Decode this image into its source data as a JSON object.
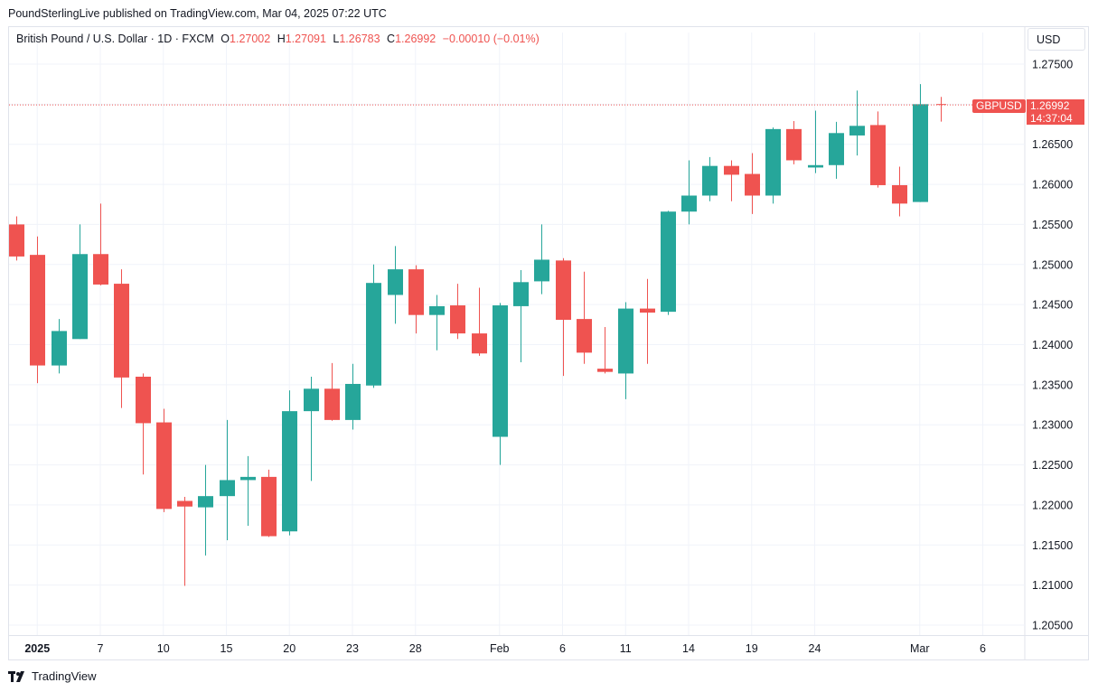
{
  "header": {
    "published": "PoundSterlingLive published on TradingView.com, Mar 04, 2025 07:22 UTC"
  },
  "legend": {
    "symbol": "British Pound / U.S. Dollar · 1D · FXCM",
    "o_label": "O",
    "o_value": "1.27002",
    "h_label": "H",
    "h_value": "1.27091",
    "l_label": "L",
    "l_value": "1.26783",
    "c_label": "C",
    "c_value": "1.26992",
    "change": "−0.00010 (−0.01%)"
  },
  "currency_label": "USD",
  "price_tag": {
    "symbol": "GBPUSD",
    "price": "1.26992",
    "countdown": "14:37:04"
  },
  "brand": {
    "name": "TradingView"
  },
  "colors": {
    "up": "#26a69a",
    "down": "#ef5350",
    "grid": "#f0f3fa",
    "text": "#131722"
  },
  "chart_data": {
    "type": "candlestick",
    "title": "British Pound / U.S. Dollar · 1D · FXCM",
    "ylabel": "USD",
    "ylim": [
      1.2045,
      1.277
    ],
    "yticks": [
      "1.27500",
      "1.27000",
      "1.26500",
      "1.26000",
      "1.25500",
      "1.25000",
      "1.24500",
      "1.24000",
      "1.23500",
      "1.23000",
      "1.22500",
      "1.22000",
      "1.21500",
      "1.21000",
      "1.20500"
    ],
    "xticks": [
      {
        "label": "2025",
        "index": 1,
        "bold": true
      },
      {
        "label": "7",
        "index": 4
      },
      {
        "label": "10",
        "index": 7
      },
      {
        "label": "15",
        "index": 10
      },
      {
        "label": "20",
        "index": 13
      },
      {
        "label": "23",
        "index": 16
      },
      {
        "label": "28",
        "index": 19
      },
      {
        "label": "Feb",
        "index": 23
      },
      {
        "label": "6",
        "index": 26
      },
      {
        "label": "11",
        "index": 29
      },
      {
        "label": "14",
        "index": 32
      },
      {
        "label": "19",
        "index": 35
      },
      {
        "label": "24",
        "index": 38
      },
      {
        "label": "Mar",
        "index": 43
      },
      {
        "label": "6",
        "index": 46
      }
    ],
    "last_price": 1.26992,
    "candles": [
      {
        "o": 1.255,
        "h": 1.256,
        "l": 1.2505,
        "c": 1.251
      },
      {
        "o": 1.2512,
        "h": 1.2535,
        "l": 1.2352,
        "c": 1.2374
      },
      {
        "o": 1.2374,
        "h": 1.2432,
        "l": 1.2364,
        "c": 1.2417
      },
      {
        "o": 1.2407,
        "h": 1.255,
        "l": 1.2407,
        "c": 1.2513
      },
      {
        "o": 1.2513,
        "h": 1.2576,
        "l": 1.2474,
        "c": 1.2475
      },
      {
        "o": 1.2476,
        "h": 1.2494,
        "l": 1.2321,
        "c": 1.2359
      },
      {
        "o": 1.236,
        "h": 1.2364,
        "l": 1.2238,
        "c": 1.2302
      },
      {
        "o": 1.2303,
        "h": 1.232,
        "l": 1.2191,
        "c": 1.2195
      },
      {
        "o": 1.2205,
        "h": 1.221,
        "l": 1.2099,
        "c": 1.2198
      },
      {
        "o": 1.2197,
        "h": 1.225,
        "l": 1.2137,
        "c": 1.2211
      },
      {
        "o": 1.2211,
        "h": 1.2306,
        "l": 1.2156,
        "c": 1.2231
      },
      {
        "o": 1.2231,
        "h": 1.2261,
        "l": 1.2174,
        "c": 1.2235
      },
      {
        "o": 1.2235,
        "h": 1.2244,
        "l": 1.216,
        "c": 1.2161
      },
      {
        "o": 1.2167,
        "h": 1.2343,
        "l": 1.2162,
        "c": 1.2317
      },
      {
        "o": 1.2317,
        "h": 1.236,
        "l": 1.223,
        "c": 1.2345
      },
      {
        "o": 1.2345,
        "h": 1.2377,
        "l": 1.2305,
        "c": 1.2306
      },
      {
        "o": 1.2306,
        "h": 1.2376,
        "l": 1.2294,
        "c": 1.2351
      },
      {
        "o": 1.2349,
        "h": 1.25,
        "l": 1.2346,
        "c": 1.2477
      },
      {
        "o": 1.2462,
        "h": 1.2523,
        "l": 1.2426,
        "c": 1.2494
      },
      {
        "o": 1.2494,
        "h": 1.2499,
        "l": 1.2414,
        "c": 1.2437
      },
      {
        "o": 1.2437,
        "h": 1.2462,
        "l": 1.2393,
        "c": 1.2448
      },
      {
        "o": 1.2449,
        "h": 1.2476,
        "l": 1.2407,
        "c": 1.2414
      },
      {
        "o": 1.2414,
        "h": 1.2471,
        "l": 1.2386,
        "c": 1.2389
      },
      {
        "o": 1.2285,
        "h": 1.2452,
        "l": 1.225,
        "c": 1.2449
      },
      {
        "o": 1.2448,
        "h": 1.2493,
        "l": 1.2378,
        "c": 1.2478
      },
      {
        "o": 1.2479,
        "h": 1.255,
        "l": 1.2463,
        "c": 1.2506
      },
      {
        "o": 1.2505,
        "h": 1.2508,
        "l": 1.2361,
        "c": 1.2431
      },
      {
        "o": 1.2432,
        "h": 1.2491,
        "l": 1.2376,
        "c": 1.239
      },
      {
        "o": 1.237,
        "h": 1.2422,
        "l": 1.2364,
        "c": 1.2366
      },
      {
        "o": 1.2364,
        "h": 1.2453,
        "l": 1.2332,
        "c": 1.2445
      },
      {
        "o": 1.2445,
        "h": 1.2482,
        "l": 1.2376,
        "c": 1.244
      },
      {
        "o": 1.2441,
        "h": 1.2567,
        "l": 1.2437,
        "c": 1.2566
      },
      {
        "o": 1.2566,
        "h": 1.263,
        "l": 1.255,
        "c": 1.2586
      },
      {
        "o": 1.2586,
        "h": 1.2634,
        "l": 1.2579,
        "c": 1.2623
      },
      {
        "o": 1.2623,
        "h": 1.263,
        "l": 1.2579,
        "c": 1.2612
      },
      {
        "o": 1.2613,
        "h": 1.2639,
        "l": 1.2563,
        "c": 1.2586
      },
      {
        "o": 1.2586,
        "h": 1.2671,
        "l": 1.2576,
        "c": 1.2669
      },
      {
        "o": 1.2669,
        "h": 1.2679,
        "l": 1.2625,
        "c": 1.263
      },
      {
        "o": 1.2621,
        "h": 1.2692,
        "l": 1.2614,
        "c": 1.2624
      },
      {
        "o": 1.2624,
        "h": 1.2678,
        "l": 1.2607,
        "c": 1.2664
      },
      {
        "o": 1.2661,
        "h": 1.2717,
        "l": 1.2636,
        "c": 1.2673
      },
      {
        "o": 1.2674,
        "h": 1.2691,
        "l": 1.2596,
        "c": 1.2599
      },
      {
        "o": 1.2599,
        "h": 1.2622,
        "l": 1.256,
        "c": 1.2576
      },
      {
        "o": 1.2578,
        "h": 1.2725,
        "l": 1.2578,
        "c": 1.27
      },
      {
        "o": 1.27002,
        "h": 1.27091,
        "l": 1.26783,
        "c": 1.26992
      }
    ]
  }
}
